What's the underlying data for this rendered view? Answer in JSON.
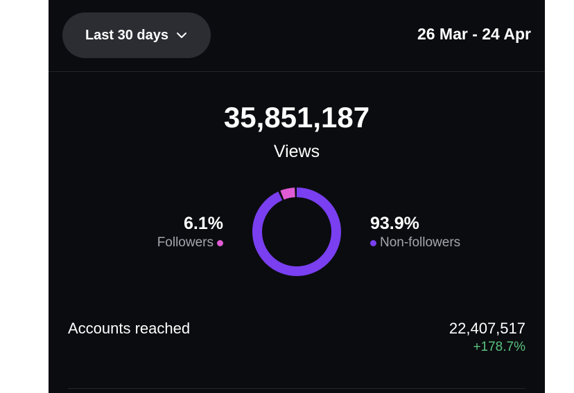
{
  "header": {
    "range_label": "Last 30 days",
    "date_range": "26 Mar - 24 Apr"
  },
  "views": {
    "total": "35,851,187",
    "label": "Views"
  },
  "breakdown": {
    "followers": {
      "percent_label": "6.1%",
      "label": "Followers",
      "value": 6.1,
      "color": "#e05cd4"
    },
    "non_followers": {
      "percent_label": "93.9%",
      "label": "Non-followers",
      "value": 93.9,
      "color": "#7a3ff0"
    }
  },
  "accounts_reached": {
    "label": "Accounts reached",
    "value": "22,407,517",
    "change": "+178.7%",
    "change_color": "#58c27d"
  },
  "icons": {
    "range_chevron": "chevron-down-icon"
  }
}
